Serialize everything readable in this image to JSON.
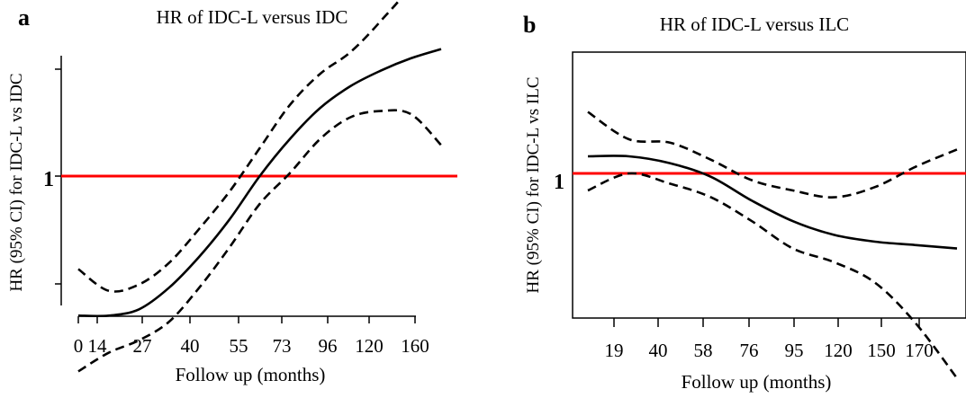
{
  "chart_data": [
    {
      "type": "line",
      "panel_label": "a",
      "title": "HR of IDC-L versus IDC",
      "xlabel": "Follow up (months)",
      "ylabel": "HR (95% CI) for IDC-L vs IDC",
      "x_ticks": [
        "0",
        "14",
        "27",
        "40",
        "55",
        "73",
        "96",
        "120",
        "160"
      ],
      "y_ticks": [
        "1"
      ],
      "reference_line": {
        "value": 1,
        "color": "#ff0000"
      },
      "series": [
        {
          "style": "solid",
          "color": "#000000",
          "values": [
            0.55,
            0.55,
            0.57,
            0.64,
            0.74,
            0.86,
            1.0,
            1.12,
            1.22,
            1.29,
            1.34,
            1.38,
            1.41
          ]
        },
        {
          "style": "dashed",
          "color": "#000000",
          "values": [
            0.7,
            0.63,
            0.65,
            0.72,
            0.83,
            0.95,
            1.09,
            1.23,
            1.33,
            1.4,
            1.5,
            1.62,
            1.82
          ]
        },
        {
          "style": "dashed",
          "color": "#000000",
          "values": [
            0.37,
            0.43,
            0.47,
            0.53,
            0.64,
            0.77,
            0.91,
            1.01,
            1.12,
            1.19,
            1.21,
            1.2,
            1.1
          ]
        }
      ]
    },
    {
      "type": "line",
      "panel_label": "b",
      "title": "HR of IDC-L versus ILC",
      "xlabel": "Follow up (months)",
      "ylabel": "HR (95% CI) for IDC-L vs ILC",
      "x_ticks": [
        "19",
        "40",
        "58",
        "76",
        "95",
        "120",
        "150",
        "170"
      ],
      "y_ticks": [
        "1"
      ],
      "reference_line": {
        "value": 1,
        "color": "#ff0000"
      },
      "series": [
        {
          "style": "solid",
          "color": "#000000",
          "values": [
            1.05,
            1.05,
            1.03,
            0.99,
            0.92,
            0.86,
            0.82,
            0.8,
            0.79,
            0.78
          ]
        },
        {
          "style": "dashed",
          "color": "#000000",
          "values": [
            1.18,
            1.1,
            1.09,
            1.04,
            0.98,
            0.95,
            0.93,
            0.96,
            1.02,
            1.07
          ]
        },
        {
          "style": "dashed",
          "color": "#000000",
          "values": [
            0.95,
            1.0,
            0.97,
            0.93,
            0.86,
            0.78,
            0.74,
            0.68,
            0.56,
            0.4
          ]
        }
      ]
    }
  ]
}
